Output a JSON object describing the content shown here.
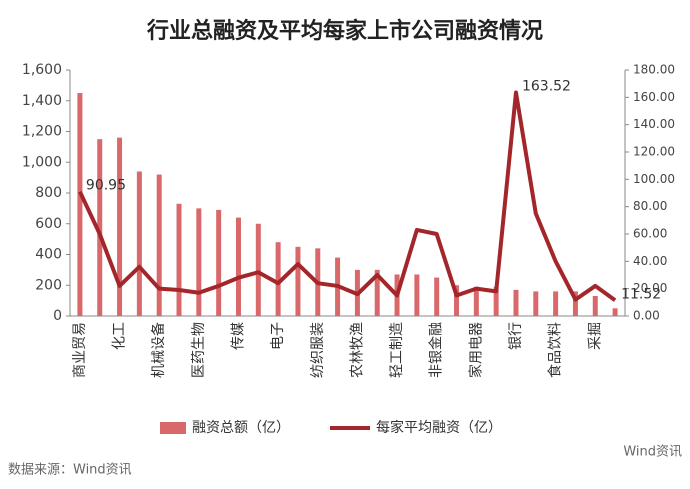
{
  "chart_data": {
    "type": "bar-line",
    "title": "行业总融资及平均每家上市公司融资情况",
    "categories": [
      "商业贸易",
      null,
      "化工",
      null,
      "机械设备",
      null,
      "医药生物",
      null,
      "传媒",
      null,
      "电子",
      null,
      "纺织服装",
      null,
      "农林牧渔",
      null,
      "轻工制造",
      null,
      "非银金融",
      null,
      "家用电器",
      null,
      "银行",
      null,
      "食品饮料",
      null,
      "采掘",
      null
    ],
    "series": [
      {
        "name": "融资总额（亿）",
        "type": "bar",
        "color": "#d9686b",
        "values": [
          1450,
          1150,
          1160,
          940,
          920,
          730,
          700,
          690,
          640,
          600,
          480,
          450,
          440,
          380,
          300,
          300,
          270,
          270,
          250,
          200,
          190,
          190,
          170,
          160,
          160,
          160,
          130,
          50
        ]
      },
      {
        "name": "每家平均融资（亿）",
        "type": "line",
        "axis": "y2",
        "color": "#a3262a",
        "values": [
          90.95,
          60,
          22,
          36,
          20,
          19,
          17,
          22,
          28,
          32,
          24,
          38,
          24,
          22,
          16,
          30,
          15,
          63,
          60,
          15,
          20,
          18,
          163.52,
          75,
          40,
          12,
          22,
          11.52
        ],
        "value_labels": [
          "90.95",
          null,
          null,
          null,
          null,
          null,
          null,
          null,
          null,
          null,
          null,
          null,
          null,
          null,
          null,
          null,
          null,
          null,
          null,
          null,
          null,
          null,
          "163.52",
          null,
          null,
          null,
          null,
          "11.52"
        ]
      }
    ],
    "ylim": [
      0,
      1600
    ],
    "yticks": [
      0,
      200,
      400,
      600,
      800,
      {
        "value": 1000,
        "label": "1,000"
      },
      {
        "value": 1200,
        "label": "1,200"
      },
      {
        "value": 1400,
        "label": "1,400"
      },
      {
        "value": 1600,
        "label": "1,600"
      }
    ],
    "y2lim": [
      0,
      180
    ],
    "y2ticks": [
      {
        "value": 0,
        "label": "0.00"
      },
      {
        "value": 20,
        "label": "20.00"
      },
      {
        "value": 40,
        "label": "40.00"
      },
      {
        "value": 60,
        "label": "60.00"
      },
      {
        "value": 80,
        "label": "80.00"
      },
      {
        "value": 100,
        "label": "100.00"
      },
      {
        "value": 120,
        "label": "120.00"
      },
      {
        "value": 140,
        "label": "140.00"
      },
      {
        "value": 160,
        "label": "160.00"
      },
      {
        "value": 180,
        "label": "180.00"
      }
    ],
    "source": "数据来源：Wind资讯",
    "logo": "Wind资讯"
  }
}
